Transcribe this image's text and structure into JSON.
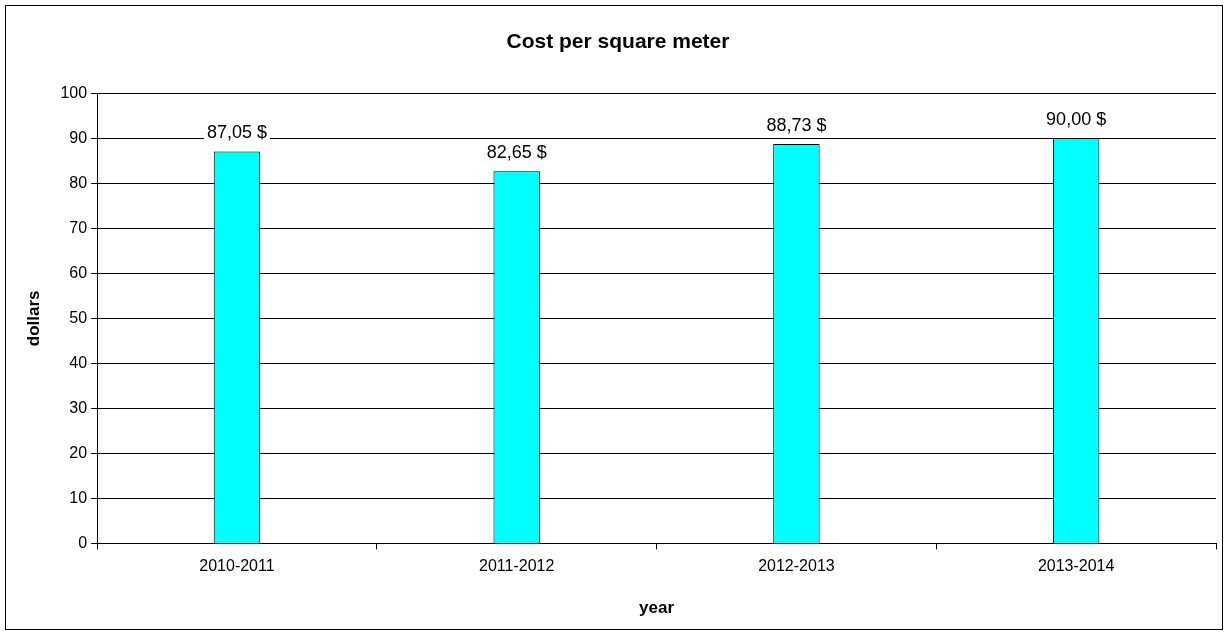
{
  "chart_data": {
    "type": "bar",
    "title": "Cost per square meter",
    "xlabel": "year",
    "ylabel": "dollars",
    "categories": [
      "2010-2011",
      "2011-2012",
      "2012-2013",
      "2013-2014"
    ],
    "values": [
      87.05,
      82.65,
      88.73,
      90.0
    ],
    "value_labels": [
      "87,05 $",
      "82,65 $",
      "88,73 $",
      "90,00 $"
    ],
    "color": "#00ffff",
    "ylim": [
      0,
      100
    ],
    "yticks": [
      0,
      10,
      20,
      30,
      40,
      50,
      60,
      70,
      80,
      90,
      100
    ],
    "grid": "y"
  }
}
